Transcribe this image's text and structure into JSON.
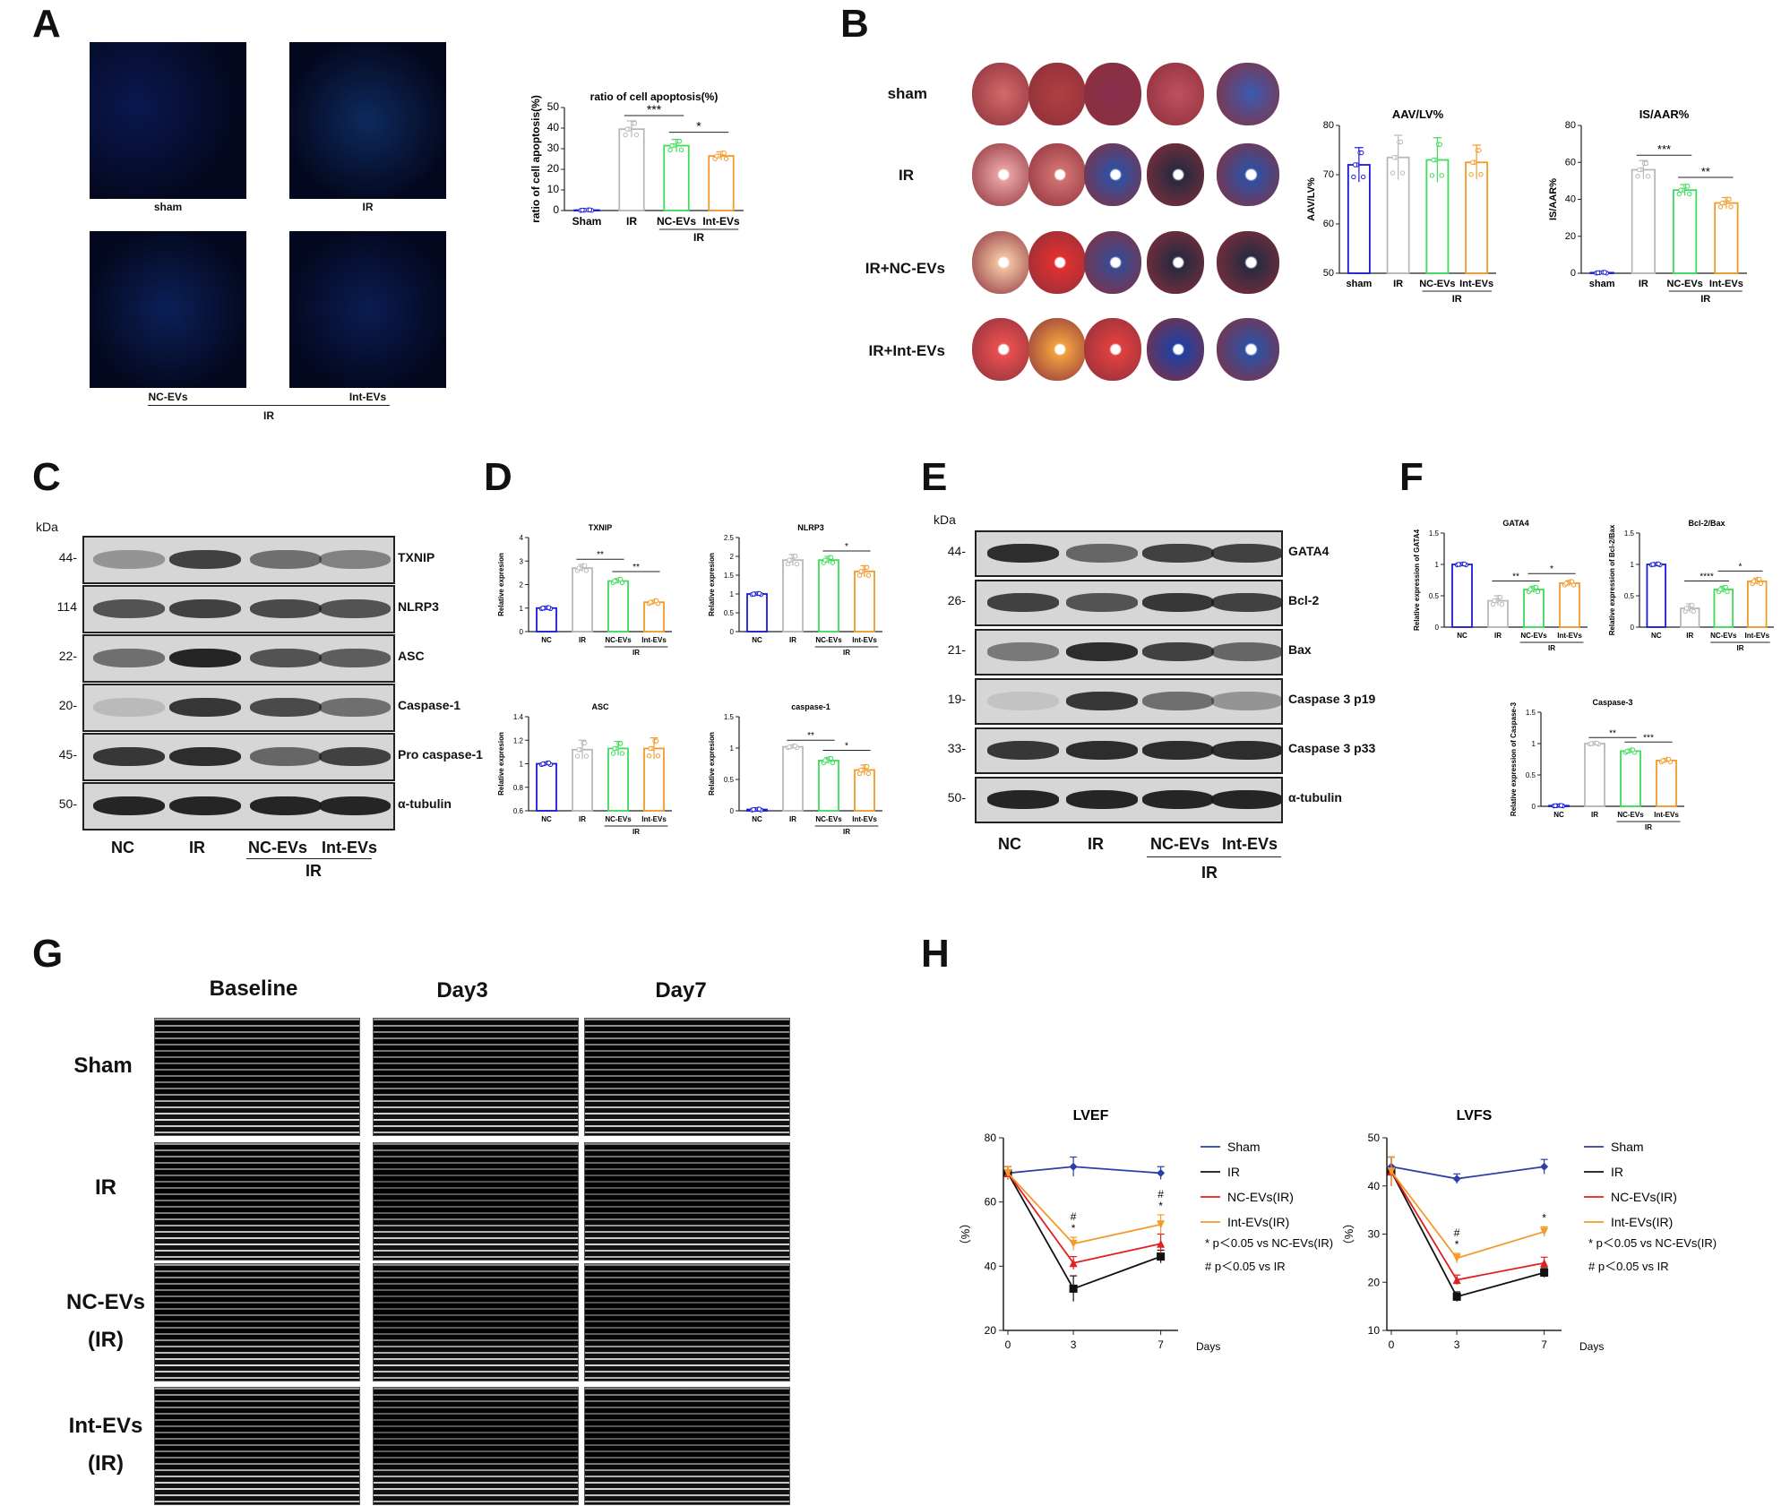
{
  "panels": {
    "A": "A",
    "B": "B",
    "C": "C",
    "D": "D",
    "E": "E",
    "F": "F",
    "G": "G",
    "H": "H"
  },
  "panelA": {
    "images": [
      "sham",
      "IR",
      "NC-EVs",
      "Int-EVs"
    ],
    "group_label": "IR"
  },
  "panelB": {
    "rows": [
      "sham",
      "IR",
      "IR+NC-EVs",
      "IR+Int-EVs"
    ]
  },
  "panelC": {
    "kda_header": "kDa",
    "blots": [
      {
        "label": "TXNIP",
        "kda": "44-"
      },
      {
        "label": "NLRP3",
        "kda": "114"
      },
      {
        "label": "ASC",
        "kda": "22-"
      },
      {
        "label": "Caspase-1",
        "kda": "20-"
      },
      {
        "label": "Pro caspase-1",
        "kda": "45-"
      },
      {
        "label": "α-tubulin",
        "kda": "50-"
      }
    ],
    "lanes": [
      "NC",
      "IR",
      "NC-EVs",
      "Int-EVs"
    ],
    "group_label": "IR"
  },
  "panelE": {
    "kda_header": "kDa",
    "blots": [
      {
        "label": "GATA4",
        "kda": "44-"
      },
      {
        "label": "Bcl-2",
        "kda": "26-"
      },
      {
        "label": "Bax",
        "kda": "21-"
      },
      {
        "label": "Caspase 3 p19",
        "kda": "19-"
      },
      {
        "label": "Caspase 3 p33",
        "kda": "33-"
      },
      {
        "label": "α-tubulin",
        "kda": "50-"
      }
    ],
    "lanes": [
      "NC",
      "IR",
      "NC-EVs",
      "Int-EVs"
    ],
    "group_label": "IR"
  },
  "panelG": {
    "columns": [
      "Baseline",
      "Day3",
      "Day7"
    ],
    "rows": [
      [
        "Sham",
        ""
      ],
      [
        "IR",
        ""
      ],
      [
        "NC-EVs",
        "(IR)"
      ],
      [
        "Int-EVs",
        "(IR)"
      ]
    ]
  },
  "colors": {
    "blue": "#1a1ad6",
    "gray": "#b8b8b8",
    "green": "#3ddc5a",
    "orange": "#f39a2a",
    "line_blue": "#2b3fa8",
    "line_black": "#111111",
    "line_red": "#e02020",
    "line_orange": "#f39a2a"
  },
  "chart_data": [
    {
      "id": "A-apoptosis",
      "type": "bar",
      "title": "ratio of cell apoptosis(%)",
      "ylabel": "ratio of cell apoptosis(%)",
      "categories": [
        "Sham",
        "IR",
        "NC-EVs",
        "Int-EVs"
      ],
      "values": [
        0.2,
        39.5,
        31.5,
        26.5
      ],
      "errors": [
        0.2,
        4,
        3,
        2
      ],
      "ylim": [
        0,
        50
      ],
      "yticks": [
        0,
        10,
        20,
        30,
        40,
        50
      ],
      "group_label": "IR",
      "sig": [
        {
          "from": 1,
          "to": 2,
          "text": "***"
        },
        {
          "from": 2,
          "to": 3,
          "text": "*"
        }
      ]
    },
    {
      "id": "B-aav",
      "type": "bar",
      "title": "AAV/LV%",
      "ylabel": "AAV/LV%",
      "categories": [
        "sham",
        "IR",
        "NC-EVs",
        "Int-EVs"
      ],
      "values": [
        72,
        73.5,
        73,
        72.5
      ],
      "errors": [
        3.5,
        4.5,
        4.5,
        3.5
      ],
      "ylim": [
        50,
        80
      ],
      "yticks": [
        50,
        60,
        70,
        80
      ],
      "group_label": "IR",
      "sig": []
    },
    {
      "id": "B-is",
      "type": "bar",
      "title": "IS/AAR%",
      "ylabel": "IS/AAR%",
      "categories": [
        "sham",
        "IR",
        "NC-EVs",
        "Int-EVs"
      ],
      "values": [
        0.3,
        56,
        45,
        38
      ],
      "errors": [
        0.3,
        5,
        3,
        3
      ],
      "ylim": [
        0,
        80
      ],
      "yticks": [
        0,
        20,
        40,
        60,
        80
      ],
      "group_label": "IR",
      "sig": [
        {
          "from": 1,
          "to": 2,
          "text": "***"
        },
        {
          "from": 2,
          "to": 3,
          "text": "**"
        }
      ]
    },
    {
      "id": "D-txnip",
      "type": "bar",
      "title": "TXNIP",
      "ylabel": "Relative expresion",
      "categories": [
        "NC",
        "IR",
        "NC-EVs",
        "Int-EVs"
      ],
      "values": [
        1.0,
        2.7,
        2.15,
        1.25
      ],
      "errors": [
        0.03,
        0.15,
        0.1,
        0.08
      ],
      "ylim": [
        0,
        4
      ],
      "yticks": [
        0,
        1,
        2,
        3,
        4
      ],
      "group_label": "IR",
      "sig": [
        {
          "from": 1,
          "to": 2,
          "text": "**"
        },
        {
          "from": 2,
          "to": 3,
          "text": "**"
        }
      ]
    },
    {
      "id": "D-nlrp3",
      "type": "bar",
      "title": "NLRP3",
      "ylabel": "Relative expresion",
      "categories": [
        "NC",
        "IR",
        "NC-EVs",
        "Int-EVs"
      ],
      "values": [
        1.0,
        1.9,
        1.9,
        1.6
      ],
      "errors": [
        0.02,
        0.15,
        0.1,
        0.15
      ],
      "ylim": [
        0,
        2.5
      ],
      "yticks": [
        0,
        0.5,
        1.0,
        1.5,
        2.0,
        2.5
      ],
      "group_label": "IR",
      "sig": [
        {
          "from": 2,
          "to": 3,
          "text": "*"
        }
      ]
    },
    {
      "id": "D-asc",
      "type": "bar",
      "title": "ASC",
      "ylabel": "Relative expresion",
      "categories": [
        "NC",
        "IR",
        "NC-EVs",
        "Int-EVs"
      ],
      "values": [
        1.0,
        1.12,
        1.13,
        1.13
      ],
      "errors": [
        0.01,
        0.08,
        0.06,
        0.09
      ],
      "ylim": [
        0.6,
        1.4
      ],
      "yticks": [
        0.6,
        0.8,
        1.0,
        1.2,
        1.4
      ],
      "group_label": "IR",
      "sig": []
    },
    {
      "id": "D-caspase1",
      "type": "bar",
      "title": "caspase-1",
      "ylabel": "Relative expresion",
      "categories": [
        "NC",
        "IR",
        "NC-EVs",
        "Int-EVs"
      ],
      "values": [
        0.02,
        1.02,
        0.8,
        0.65
      ],
      "errors": [
        0.01,
        0.02,
        0.05,
        0.08
      ],
      "ylim": [
        0,
        1.5
      ],
      "yticks": [
        0,
        0.5,
        1.0,
        1.5
      ],
      "group_label": "IR",
      "sig": [
        {
          "from": 1,
          "to": 2,
          "text": "**"
        },
        {
          "from": 2,
          "to": 3,
          "text": "*"
        }
      ]
    },
    {
      "id": "F-gata4",
      "type": "bar",
      "title": "GATA4",
      "ylabel": "Relative expression of GATA4",
      "categories": [
        "NC",
        "IR",
        "NC-EVs",
        "Int-EVs"
      ],
      "values": [
        1.0,
        0.42,
        0.6,
        0.7
      ],
      "errors": [
        0.01,
        0.08,
        0.05,
        0.04
      ],
      "ylim": [
        0,
        1.5
      ],
      "yticks": [
        0,
        0.5,
        1.0,
        1.5
      ],
      "group_label": "IR",
      "sig": [
        {
          "from": 1,
          "to": 2,
          "text": "**"
        },
        {
          "from": 2,
          "to": 3,
          "text": "*"
        }
      ]
    },
    {
      "id": "F-bcl2bax",
      "type": "bar",
      "title": "Bcl-2/Bax",
      "ylabel": "Relative expression of Bcl-2/Bax",
      "categories": [
        "NC",
        "IR",
        "NC-EVs",
        "Int-EVs"
      ],
      "values": [
        1.0,
        0.3,
        0.6,
        0.73
      ],
      "errors": [
        0.01,
        0.07,
        0.05,
        0.05
      ],
      "ylim": [
        0,
        1.5
      ],
      "yticks": [
        0,
        0.5,
        1.0,
        1.5
      ],
      "group_label": "IR",
      "sig": [
        {
          "from": 1,
          "to": 2,
          "text": "****"
        },
        {
          "from": 2,
          "to": 3,
          "text": "*"
        }
      ]
    },
    {
      "id": "F-caspase3",
      "type": "bar",
      "title": "Caspase-3",
      "ylabel": "Relative expression of Caspase-3",
      "categories": [
        "NC",
        "IR",
        "NC-EVs",
        "Int-EVs"
      ],
      "values": [
        0.01,
        1.0,
        0.88,
        0.73
      ],
      "errors": [
        0.005,
        0.01,
        0.03,
        0.03
      ],
      "ylim": [
        0,
        1.5
      ],
      "yticks": [
        0,
        0.5,
        1.0,
        1.5
      ],
      "group_label": "IR",
      "sig": [
        {
          "from": 1,
          "to": 2,
          "text": "**"
        },
        {
          "from": 2,
          "to": 3,
          "text": "***"
        }
      ]
    },
    {
      "id": "H-lvef",
      "type": "line",
      "title": "LVEF",
      "ylabel": "（%）",
      "xlabel": "Days",
      "x": [
        0,
        3,
        7
      ],
      "ylim": [
        20,
        80
      ],
      "yticks": [
        20,
        40,
        60,
        80
      ],
      "series": [
        {
          "name": "Sham",
          "values": [
            69,
            71,
            69
          ],
          "errors": [
            2,
            3,
            2
          ],
          "marker": "diamond"
        },
        {
          "name": "IR",
          "values": [
            69,
            33,
            43
          ],
          "errors": [
            2,
            4,
            2
          ],
          "marker": "square"
        },
        {
          "name": "NC-EVs(IR)",
          "values": [
            69,
            41,
            47
          ],
          "errors": [
            2,
            2,
            3
          ],
          "marker": "triangle-up"
        },
        {
          "name": "Int-EVs(IR)",
          "values": [
            69,
            47,
            53
          ],
          "errors": [
            2,
            2,
            3
          ],
          "marker": "triangle-down"
        }
      ],
      "annotations": [
        {
          "x": 3,
          "lines": [
            "#",
            "*"
          ]
        },
        {
          "x": 7,
          "lines": [
            "#",
            "*"
          ]
        }
      ],
      "legend_notes": [
        "* p＜0.05 vs NC-EVs(IR)",
        "# p＜0.05 vs IR"
      ]
    },
    {
      "id": "H-lvfs",
      "type": "line",
      "title": "LVFS",
      "ylabel": "（%）",
      "xlabel": "Days",
      "x": [
        0,
        3,
        7
      ],
      "ylim": [
        10,
        50
      ],
      "yticks": [
        10,
        20,
        30,
        40,
        50
      ],
      "series": [
        {
          "name": "Sham",
          "values": [
            44,
            41.5,
            44
          ],
          "errors": [
            2,
            1,
            1.5
          ],
          "marker": "diamond"
        },
        {
          "name": "IR",
          "values": [
            43,
            17,
            22
          ],
          "errors": [
            3,
            1,
            1
          ],
          "marker": "square"
        },
        {
          "name": "NC-EVs(IR)",
          "values": [
            43,
            20.5,
            24
          ],
          "errors": [
            3,
            1,
            1.2
          ],
          "marker": "triangle-up"
        },
        {
          "name": "Int-EVs(IR)",
          "values": [
            43,
            25,
            30.5
          ],
          "errors": [
            3,
            1,
            1
          ],
          "marker": "triangle-down"
        }
      ],
      "annotations": [
        {
          "x": 3,
          "lines": [
            "#",
            "*"
          ]
        },
        {
          "x": 7,
          "lines": [
            "*"
          ]
        }
      ],
      "legend_notes": [
        "* p＜0.05 vs NC-EVs(IR)",
        "# p＜0.05 vs IR"
      ]
    }
  ]
}
